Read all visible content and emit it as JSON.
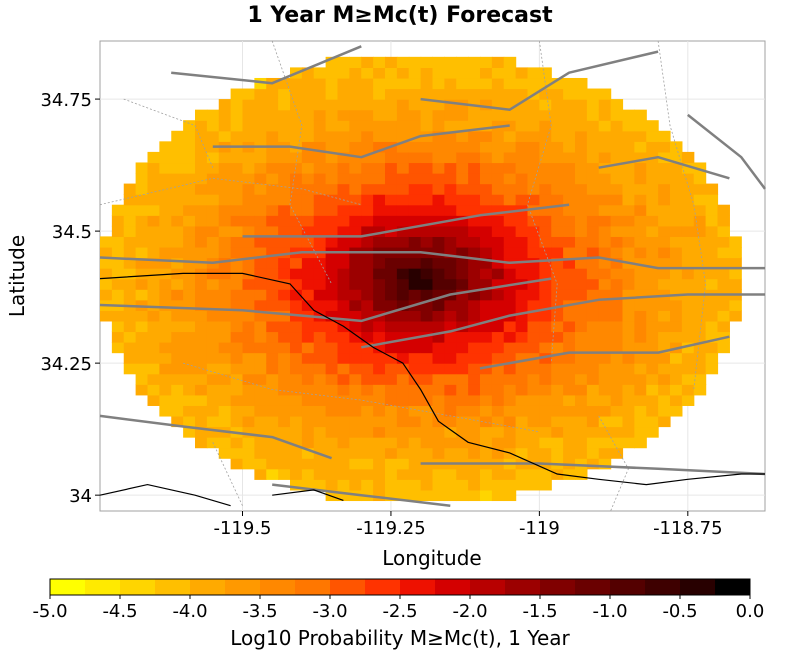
{
  "chart_data": {
    "type": "heatmap",
    "title": "1 Year M≥Mc(t) Forecast",
    "xlabel": "Longitude",
    "ylabel": "Latitude",
    "xlim": [
      -119.74,
      -118.62
    ],
    "ylim": [
      33.97,
      34.86
    ],
    "x_ticks": [
      {
        "value": -119.5,
        "label": "-119.5"
      },
      {
        "value": -119.25,
        "label": "-119.25"
      },
      {
        "value": -119.0,
        "label": "-119"
      },
      {
        "value": -118.75,
        "label": "-118.75"
      }
    ],
    "y_ticks": [
      {
        "value": 34.75,
        "label": "34.75"
      },
      {
        "value": 34.5,
        "label": "34.5"
      },
      {
        "value": 34.25,
        "label": "34.25"
      },
      {
        "value": 34.0,
        "label": "34"
      }
    ],
    "grid": true,
    "peak": {
      "lon": -119.2,
      "lat": 34.41,
      "value": -0.3
    },
    "grid_spacing_deg": 0.02,
    "colorbar": {
      "label": "Log10 Probability M≥Mc(t), 1 Year",
      "range": [
        -5.0,
        0.0
      ],
      "placement": "bottom",
      "ticks": [
        {
          "value": -5.0,
          "label": "-5.0"
        },
        {
          "value": -4.5,
          "label": "-4.5"
        },
        {
          "value": -4.0,
          "label": "-4.0"
        },
        {
          "value": -3.5,
          "label": "-3.5"
        },
        {
          "value": -3.0,
          "label": "-3.0"
        },
        {
          "value": -2.5,
          "label": "-2.5"
        },
        {
          "value": -2.0,
          "label": "-2.0"
        },
        {
          "value": -1.5,
          "label": "-1.5"
        },
        {
          "value": -1.0,
          "label": "-1.0"
        },
        {
          "value": -0.5,
          "label": "-0.5"
        },
        {
          "value": 0.0,
          "label": "0.0"
        }
      ],
      "colors": [
        "#ffff00",
        "#ffea00",
        "#ffd500",
        "#ffbf00",
        "#ffaa00",
        "#ff9900",
        "#ff8800",
        "#ff7700",
        "#ff5500",
        "#ff3300",
        "#ee1100",
        "#d40000",
        "#b80000",
        "#9c0000",
        "#800000",
        "#6a0000",
        "#540000",
        "#3e0000",
        "#280000",
        "#000000"
      ]
    },
    "overlays": {
      "fault_color": "#808080",
      "coastline_color": "#000000",
      "boundary_color": "#a0a0a0"
    }
  }
}
